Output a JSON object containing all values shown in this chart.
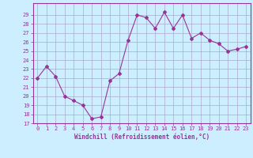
{
  "x": [
    0,
    1,
    2,
    3,
    4,
    5,
    6,
    7,
    8,
    9,
    10,
    11,
    12,
    13,
    14,
    15,
    16,
    17,
    18,
    19,
    20,
    21,
    22,
    23
  ],
  "y": [
    22,
    23.3,
    22.2,
    20,
    19.5,
    19,
    17.5,
    17.7,
    21.7,
    22.5,
    26.2,
    29.0,
    28.7,
    27.5,
    29.3,
    27.5,
    29.0,
    26.4,
    27.0,
    26.2,
    25.8,
    25.0,
    25.2,
    25.5
  ],
  "line_color": "#993399",
  "marker": "D",
  "marker_size": 2.0,
  "bg_color": "#cceeff",
  "grid_color": "#aaaacc",
  "xlabel": "Windchill (Refroidissement éolien,°C)",
  "ylim": [
    17,
    30
  ],
  "xlim_min": -0.5,
  "xlim_max": 23.5,
  "yticks": [
    17,
    18,
    19,
    20,
    21,
    22,
    23,
    24,
    25,
    26,
    27,
    28,
    29
  ],
  "xticks": [
    0,
    1,
    2,
    3,
    4,
    5,
    6,
    7,
    8,
    9,
    10,
    11,
    12,
    13,
    14,
    15,
    16,
    17,
    18,
    19,
    20,
    21,
    22,
    23
  ],
  "tick_color": "#993399",
  "label_color": "#993399",
  "spine_color": "#993399",
  "font_family": "monospace",
  "tick_fontsize": 5.0,
  "xlabel_fontsize": 5.5
}
